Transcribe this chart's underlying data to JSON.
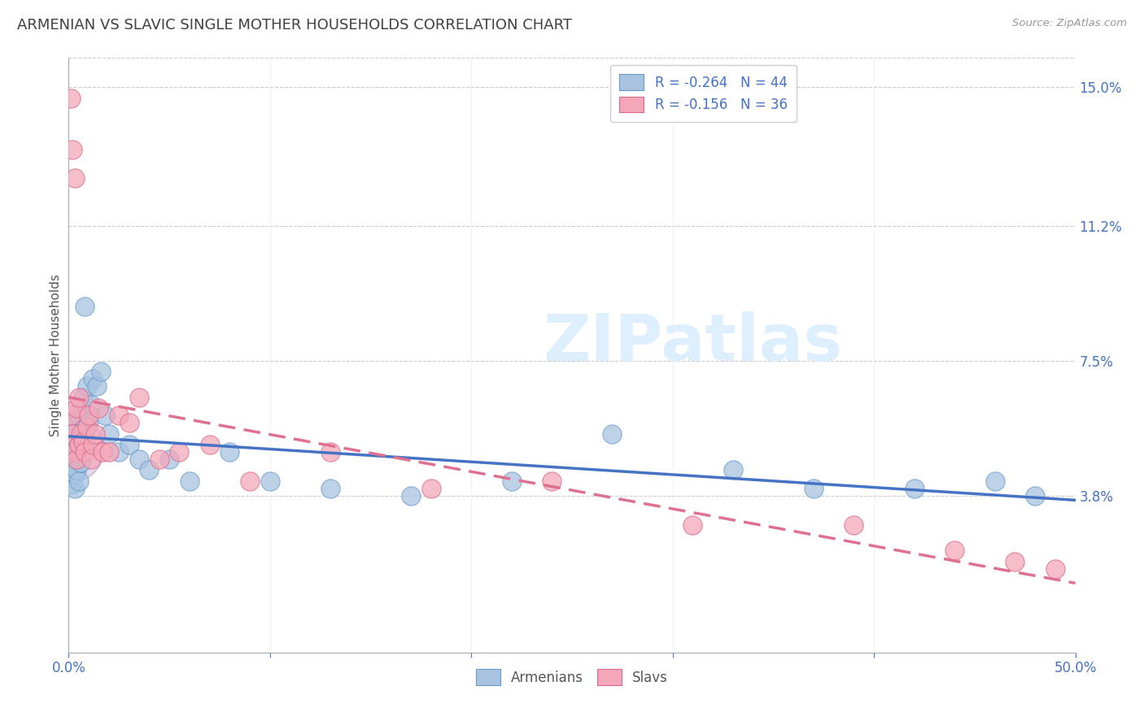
{
  "title": "ARMENIAN VS SLAVIC SINGLE MOTHER HOUSEHOLDS CORRELATION CHART",
  "source": "Source: ZipAtlas.com",
  "ylabel": "Single Mother Households",
  "right_ytick_vals": [
    0.038,
    0.075,
    0.112,
    0.15
  ],
  "right_ytick_labels": [
    "3.8%",
    "7.5%",
    "11.2%",
    "15.0%"
  ],
  "watermark": "ZIPatlas",
  "legend_line1": "R = -0.264   N = 44",
  "legend_line2": "R = -0.156   N = 36",
  "color_armenians_fill": "#a8c4e0",
  "color_armenians_edge": "#6699cc",
  "color_slavs_fill": "#f4a7b9",
  "color_slavs_edge": "#dd6688",
  "color_line_armenians": "#4472c4",
  "color_line_slavs": "#e07090",
  "background_color": "#ffffff",
  "grid_color": "#cccccc",
  "title_color": "#404040",
  "axis_tick_color": "#4472c4",
  "legend_text_color": "#4472c4",
  "watermark_color": "#ddeeff",
  "xmin": 0.0,
  "xmax": 0.5,
  "ymin": -0.005,
  "ymax": 0.158,
  "armenians_x": [
    0.001,
    0.001,
    0.001,
    0.002,
    0.002,
    0.002,
    0.003,
    0.003,
    0.003,
    0.004,
    0.004,
    0.005,
    0.005,
    0.005,
    0.006,
    0.006,
    0.007,
    0.007,
    0.008,
    0.009,
    0.01,
    0.011,
    0.012,
    0.014,
    0.016,
    0.018,
    0.02,
    0.025,
    0.03,
    0.035,
    0.04,
    0.05,
    0.06,
    0.08,
    0.1,
    0.13,
    0.17,
    0.22,
    0.27,
    0.33,
    0.37,
    0.42,
    0.46,
    0.48
  ],
  "armenians_y": [
    0.05,
    0.048,
    0.043,
    0.052,
    0.046,
    0.041,
    0.056,
    0.044,
    0.04,
    0.058,
    0.045,
    0.06,
    0.052,
    0.042,
    0.062,
    0.047,
    0.065,
    0.055,
    0.09,
    0.068,
    0.058,
    0.063,
    0.07,
    0.068,
    0.072,
    0.06,
    0.055,
    0.05,
    0.052,
    0.048,
    0.045,
    0.048,
    0.042,
    0.05,
    0.042,
    0.04,
    0.038,
    0.042,
    0.055,
    0.045,
    0.04,
    0.04,
    0.042,
    0.038
  ],
  "slavs_x": [
    0.001,
    0.001,
    0.002,
    0.002,
    0.003,
    0.003,
    0.004,
    0.004,
    0.005,
    0.005,
    0.006,
    0.007,
    0.008,
    0.009,
    0.01,
    0.011,
    0.012,
    0.013,
    0.015,
    0.017,
    0.02,
    0.025,
    0.03,
    0.035,
    0.045,
    0.055,
    0.07,
    0.09,
    0.13,
    0.18,
    0.24,
    0.31,
    0.39,
    0.44,
    0.47,
    0.49
  ],
  "slavs_y": [
    0.147,
    0.06,
    0.133,
    0.055,
    0.125,
    0.05,
    0.062,
    0.048,
    0.065,
    0.052,
    0.055,
    0.053,
    0.05,
    0.057,
    0.06,
    0.048,
    0.052,
    0.055,
    0.062,
    0.05,
    0.05,
    0.06,
    0.058,
    0.065,
    0.048,
    0.05,
    0.052,
    0.042,
    0.05,
    0.04,
    0.042,
    0.03,
    0.03,
    0.023,
    0.02,
    0.018
  ]
}
